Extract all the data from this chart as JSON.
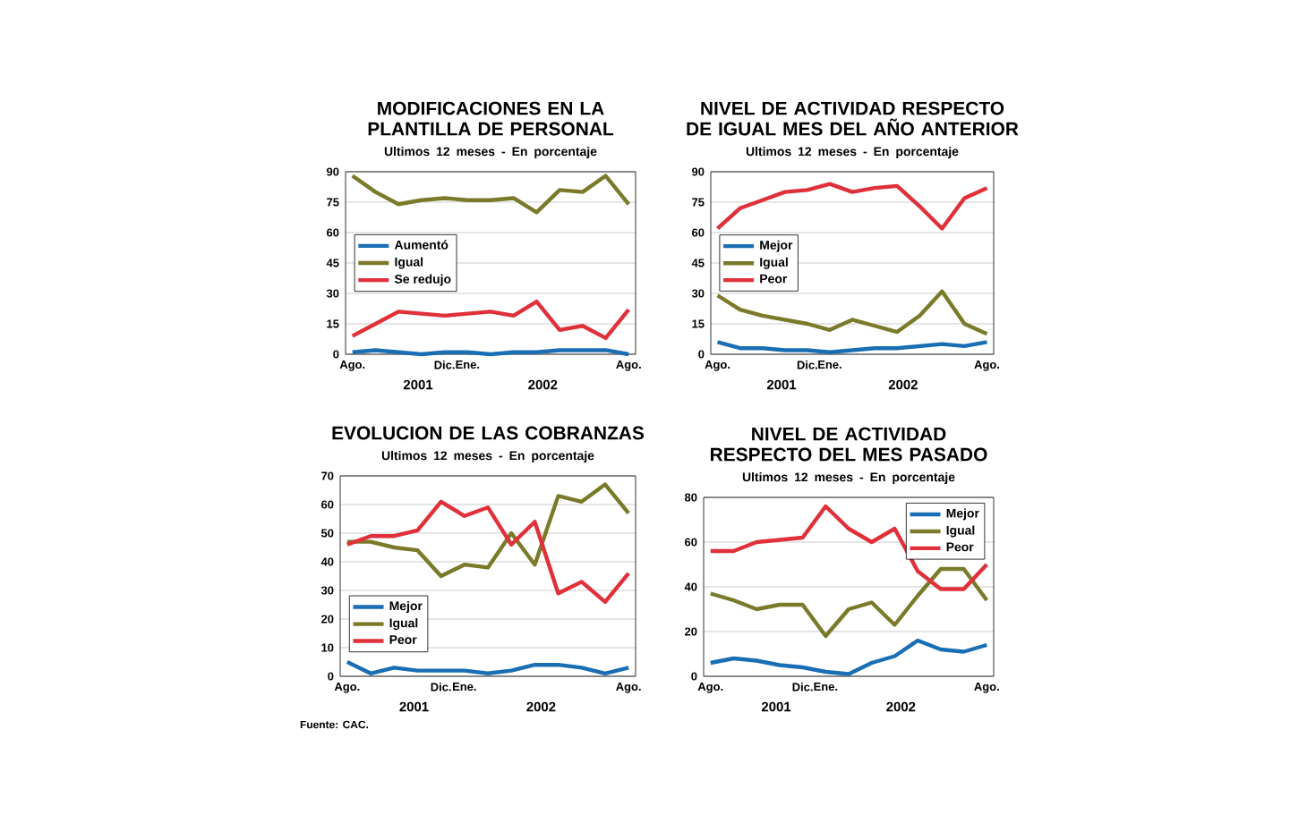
{
  "chart_data": [
    {
      "type": "line",
      "title": "MODIFICACIONES EN LA PLANTILLA DE PERSONAL",
      "subtitle": "Ultimos 12 meses - En porcentaje",
      "categories": [
        "Ago.",
        null,
        null,
        null,
        "Dic.",
        "Ene.",
        null,
        null,
        null,
        null,
        null,
        null,
        "Ago."
      ],
      "series": [
        {
          "name": "Aumentó",
          "color": "#1a6eb4",
          "values": [
            1,
            2,
            1,
            0,
            1,
            1,
            0,
            1,
            1,
            2,
            2,
            2,
            0
          ]
        },
        {
          "name": "Igual",
          "color": "#7a7a2a",
          "values": [
            88,
            80,
            74,
            76,
            77,
            76,
            76,
            77,
            70,
            81,
            80,
            88,
            74
          ]
        },
        {
          "name": "Se redujo",
          "color": "#e0303a",
          "values": [
            9,
            15,
            21,
            20,
            19,
            20,
            21,
            19,
            26,
            12,
            14,
            8,
            22
          ]
        }
      ],
      "ylim": [
        0,
        90
      ],
      "yticks": [
        0,
        15,
        30,
        45,
        60,
        75,
        90
      ],
      "grid": "y",
      "legend": "left",
      "annotations": [
        "2001",
        "2002"
      ]
    },
    {
      "type": "line",
      "title": "NIVEL DE ACTIVIDAD RESPECTO DE IGUAL MES DEL AÑO ANTERIOR",
      "subtitle": "Ultimos 12 meses - En porcentaje",
      "categories": [
        "Ago.",
        null,
        null,
        null,
        "Dic.",
        "Ene.",
        null,
        null,
        null,
        null,
        null,
        null,
        "Ago."
      ],
      "series": [
        {
          "name": "Mejor",
          "color": "#1a6eb4",
          "values": [
            6,
            3,
            3,
            2,
            2,
            1,
            2,
            3,
            3,
            4,
            5,
            4,
            6
          ]
        },
        {
          "name": "Igual",
          "color": "#7a7a2a",
          "values": [
            29,
            22,
            19,
            17,
            15,
            12,
            17,
            14,
            11,
            19,
            31,
            15,
            10
          ]
        },
        {
          "name": "Peor",
          "color": "#e0303a",
          "values": [
            62,
            72,
            76,
            80,
            81,
            84,
            80,
            82,
            83,
            73,
            62,
            77,
            82
          ]
        }
      ],
      "ylim": [
        0,
        90
      ],
      "yticks": [
        0,
        15,
        30,
        45,
        60,
        75,
        90
      ],
      "grid": "y",
      "legend": "left",
      "annotations": [
        "2001",
        "2002"
      ]
    },
    {
      "type": "line",
      "title": "EVOLUCION DE LAS COBRANZAS",
      "subtitle": "Ultimos 12 meses - En porcentaje",
      "categories": [
        "Ago.",
        null,
        null,
        null,
        "Dic.",
        "Ene.",
        null,
        null,
        null,
        null,
        null,
        null,
        "Ago."
      ],
      "series": [
        {
          "name": "Mejor",
          "color": "#1a6eb4",
          "values": [
            5,
            1,
            3,
            2,
            2,
            2,
            1,
            2,
            4,
            4,
            3,
            1,
            3
          ]
        },
        {
          "name": "Igual",
          "color": "#7a7a2a",
          "values": [
            47,
            47,
            45,
            44,
            35,
            39,
            38,
            50,
            39,
            63,
            61,
            67,
            57
          ]
        },
        {
          "name": "Peor",
          "color": "#e0303a",
          "values": [
            46,
            49,
            49,
            51,
            61,
            56,
            59,
            46,
            54,
            29,
            33,
            26,
            36
          ]
        }
      ],
      "ylim": [
        0,
        70
      ],
      "yticks": [
        0,
        10,
        20,
        30,
        40,
        50,
        60,
        70
      ],
      "grid": "y",
      "legend": "bottom left",
      "annotations": [
        "2001",
        "2002",
        "Fuente: CAC."
      ]
    },
    {
      "type": "line",
      "title": "NIVEL DE ACTIVIDAD RESPECTO DEL MES PASADO",
      "subtitle": "Ultimos 12 meses - En porcentaje",
      "categories": [
        "Ago.",
        null,
        null,
        null,
        "Dic.",
        "Ene.",
        null,
        null,
        null,
        null,
        null,
        null,
        "Ago."
      ],
      "series": [
        {
          "name": "Mejor",
          "color": "#1a6eb4",
          "values": [
            6,
            8,
            7,
            5,
            4,
            2,
            1,
            6,
            9,
            16,
            12,
            11,
            14
          ]
        },
        {
          "name": "Igual",
          "color": "#7a7a2a",
          "values": [
            37,
            34,
            30,
            32,
            32,
            18,
            30,
            33,
            23,
            36,
            48,
            48,
            34
          ]
        },
        {
          "name": "Peor",
          "color": "#e0303a",
          "values": [
            56,
            56,
            60,
            61,
            62,
            76,
            66,
            60,
            66,
            47,
            39,
            39,
            50
          ]
        }
      ],
      "ylim": [
        0,
        80
      ],
      "yticks": [
        0,
        20,
        40,
        60,
        80
      ],
      "grid": "y",
      "legend": "top right",
      "annotations": [
        "2001",
        "2002"
      ]
    }
  ]
}
